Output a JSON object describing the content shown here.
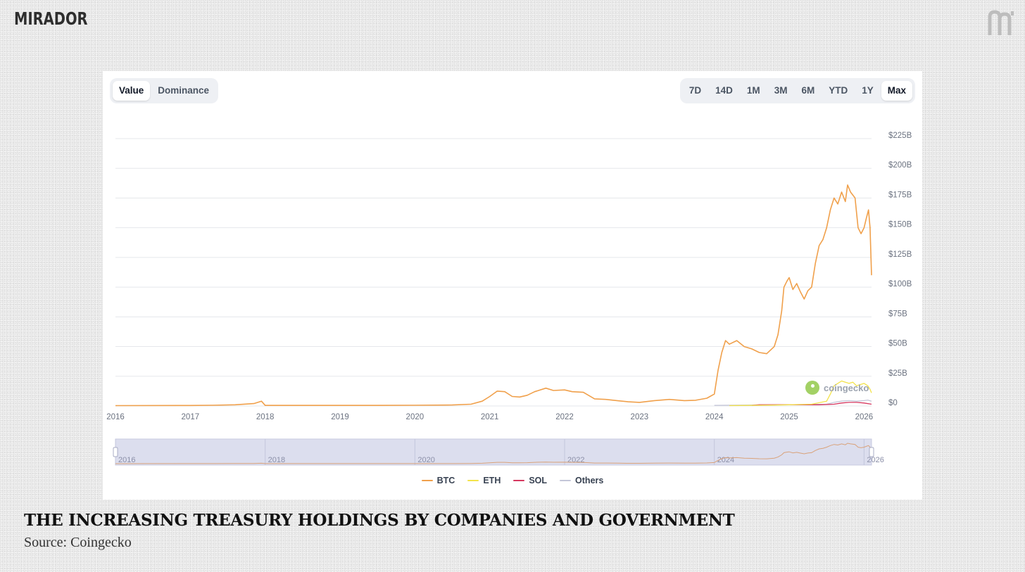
{
  "brand": {
    "name": "MIRADOR",
    "mark_icon": "mirador-m-icon"
  },
  "controls": {
    "view_tabs": [
      {
        "label": "Value",
        "active": true
      },
      {
        "label": "Dominance",
        "active": false
      }
    ],
    "range_tabs": [
      {
        "label": "7D",
        "active": false
      },
      {
        "label": "14D",
        "active": false
      },
      {
        "label": "1M",
        "active": false
      },
      {
        "label": "3M",
        "active": false
      },
      {
        "label": "6M",
        "active": false
      },
      {
        "label": "YTD",
        "active": false
      },
      {
        "label": "1Y",
        "active": false
      },
      {
        "label": "Max",
        "active": true
      }
    ]
  },
  "watermark": {
    "text": "coingecko"
  },
  "caption": {
    "title": "THE INCREASING TREASURY HOLDINGS BY COMPANIES AND GOVERNMENT",
    "source": "Source: Coingecko"
  },
  "colors": {
    "BTC": "#f0a04b",
    "ETH": "#f3e34a",
    "SOL": "#d6375f",
    "Others": "#c4c6d8",
    "grid": "#e5e7eb",
    "axis_text": "#6b7280",
    "navigator_bg": "#dcdeee"
  },
  "chart_data": {
    "type": "line",
    "title": "",
    "xlabel": "",
    "ylabel": "",
    "x_range": [
      2016.0,
      2026.1
    ],
    "ylim": [
      0,
      225
    ],
    "y_unit": "$B",
    "x_ticks": [
      "2016",
      "2017",
      "2018",
      "2019",
      "2020",
      "2021",
      "2022",
      "2023",
      "2024",
      "2025",
      "2026"
    ],
    "y_ticks": [
      "$0",
      "$25B",
      "$50B",
      "$75B",
      "$100B",
      "$125B",
      "$150B",
      "$175B",
      "$200B",
      "$225B"
    ],
    "navigator_ticks": [
      "2016",
      "2018",
      "2020",
      "2022",
      "2024",
      "2026"
    ],
    "legend": [
      "BTC",
      "ETH",
      "SOL",
      "Others"
    ],
    "series": [
      {
        "name": "BTC",
        "x": [
          2016.0,
          2017.0,
          2017.3,
          2017.6,
          2017.85,
          2017.95,
          2018.0,
          2018.5,
          2019.0,
          2019.5,
          2020.0,
          2020.5,
          2020.75,
          2020.9,
          2021.0,
          2021.1,
          2021.2,
          2021.3,
          2021.4,
          2021.5,
          2021.6,
          2021.75,
          2021.85,
          2022.0,
          2022.1,
          2022.25,
          2022.4,
          2022.55,
          2022.7,
          2022.85,
          2023.0,
          2023.2,
          2023.4,
          2023.6,
          2023.75,
          2023.9,
          2024.0,
          2024.05,
          2024.1,
          2024.15,
          2024.2,
          2024.3,
          2024.4,
          2024.5,
          2024.6,
          2024.7,
          2024.8,
          2024.85,
          2024.9,
          2024.93,
          2024.97,
          2025.0,
          2025.05,
          2025.1,
          2025.15,
          2025.2,
          2025.25,
          2025.3,
          2025.35,
          2025.4,
          2025.45,
          2025.5,
          2025.55,
          2025.6,
          2025.65,
          2025.7,
          2025.75,
          2025.78,
          2025.82,
          2025.88,
          2025.92,
          2025.96,
          2026.0,
          2026.03,
          2026.06,
          2026.08,
          2026.1
        ],
        "values": [
          0.3,
          0.4,
          0.6,
          1.0,
          2.0,
          4.0,
          0.5,
          0.5,
          0.5,
          0.5,
          0.6,
          0.8,
          1.5,
          4.0,
          8.0,
          12.5,
          12.0,
          8.0,
          7.5,
          9.0,
          12.0,
          15.0,
          13.0,
          13.5,
          12.0,
          11.5,
          6.0,
          5.5,
          4.5,
          3.5,
          3.0,
          4.5,
          5.5,
          4.5,
          4.8,
          6.5,
          10.0,
          30.0,
          45.0,
          55.0,
          52.0,
          55.0,
          50.0,
          48.0,
          45.0,
          44.0,
          50.0,
          60.0,
          80.0,
          100.0,
          105.0,
          108.0,
          98.0,
          103.0,
          96.0,
          90.0,
          97.0,
          100.0,
          120.0,
          135.0,
          140.0,
          150.0,
          165.0,
          175.0,
          170.0,
          180.0,
          172.0,
          186.0,
          180.0,
          175.0,
          150.0,
          145.0,
          150.0,
          158.0,
          165.0,
          150.0,
          110.0
        ]
      },
      {
        "name": "ETH",
        "x": [
          2024.2,
          2024.5,
          2024.8,
          2025.0,
          2025.3,
          2025.5,
          2025.55,
          2025.6,
          2025.65,
          2025.7,
          2025.75,
          2025.8,
          2025.85,
          2025.9,
          2025.95,
          2026.0,
          2026.05,
          2026.08,
          2026.1
        ],
        "values": [
          0.3,
          0.5,
          0.7,
          1.0,
          1.5,
          4.0,
          10.0,
          17.0,
          19.0,
          21.0,
          20.0,
          19.0,
          20.0,
          17.0,
          18.0,
          19.0,
          17.0,
          14.0,
          11.0
        ],
        "visible": true
      },
      {
        "name": "SOL",
        "x": [
          2024.5,
          2024.6,
          2025.0,
          2025.4,
          2025.6,
          2025.7,
          2025.8,
          2025.9,
          2026.0,
          2026.1
        ],
        "values": [
          0.5,
          1.0,
          1.0,
          1.0,
          1.5,
          2.5,
          3.0,
          3.0,
          2.5,
          1.5
        ],
        "visible": true
      },
      {
        "name": "Others",
        "x": [
          2024.0,
          2024.5,
          2025.0,
          2025.5,
          2025.6,
          2025.7,
          2025.8,
          2025.9,
          2026.0,
          2026.05,
          2026.1
        ],
        "values": [
          0.5,
          0.8,
          1.0,
          1.5,
          3.0,
          4.0,
          4.5,
          4.0,
          4.5,
          5.0,
          4.0
        ],
        "visible": true
      }
    ]
  }
}
